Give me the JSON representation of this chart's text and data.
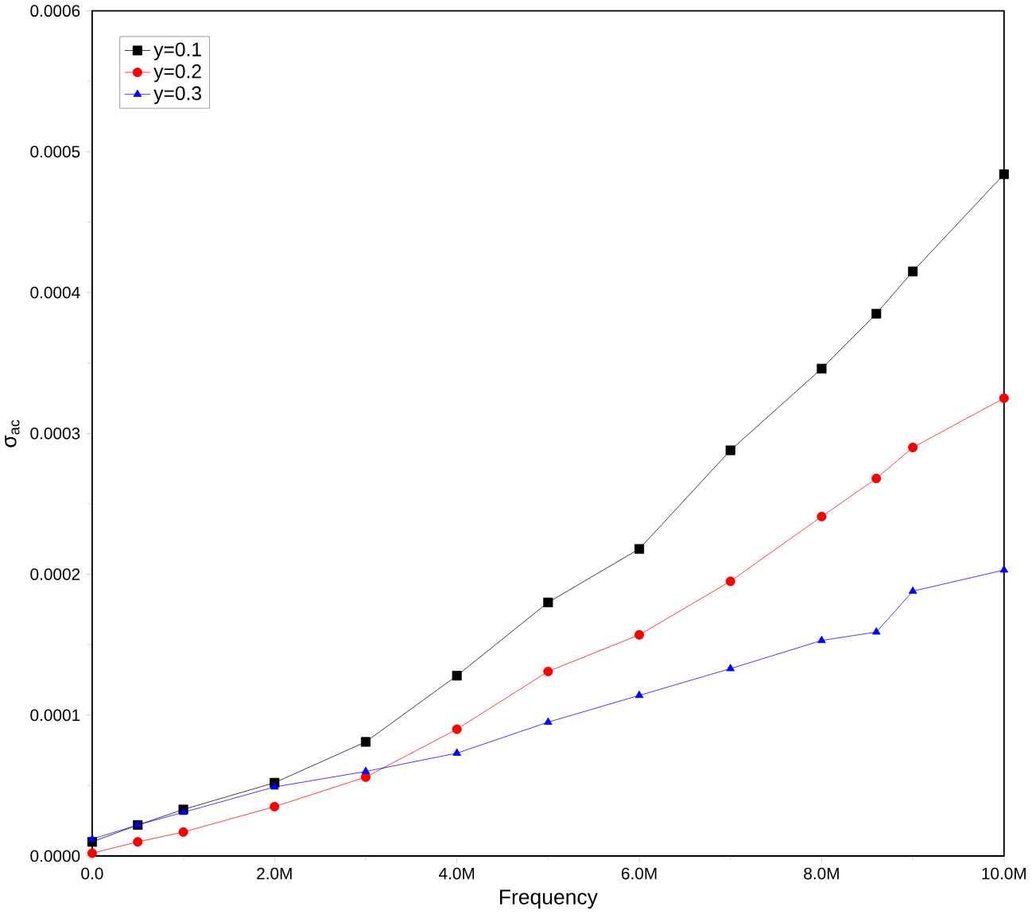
{
  "chart_data": {
    "type": "line",
    "xlabel": "Frequency",
    "ylabel": "σ$_{ac}$",
    "x": [
      0,
      500000,
      1000000,
      2000000,
      3000000,
      4000000,
      5000000,
      6000000,
      7000000,
      8000000,
      8600000,
      9000000,
      10000000
    ],
    "series": [
      {
        "name": "y=0.1",
        "color": "#000000",
        "marker": "square",
        "values": [
          1e-05,
          2.2e-05,
          3.3e-05,
          5.2e-05,
          8.1e-05,
          0.000128,
          0.00018,
          0.000218,
          0.000288,
          0.000346,
          0.000385,
          0.000415,
          0.000484
        ]
      },
      {
        "name": "y=0.2",
        "color": "#ff0000",
        "marker": "circle",
        "values": [
          2e-06,
          1e-05,
          1.7e-05,
          3.5e-05,
          5.6e-05,
          9e-05,
          0.000131,
          0.000157,
          0.000195,
          0.000241,
          0.000268,
          0.00029,
          0.000325
        ]
      },
      {
        "name": "y=0.3",
        "color": "#0000ff",
        "marker": "triangle",
        "values": [
          1.2e-05,
          2.2e-05,
          3.1e-05,
          4.9e-05,
          6e-05,
          7.3e-05,
          9.5e-05,
          0.000114,
          0.000133,
          0.000153,
          0.000159,
          0.000188,
          0.000203
        ]
      }
    ],
    "xlim": [
      0,
      10000000
    ],
    "ylim": [
      0,
      0.0006
    ],
    "xticks": [
      {
        "value": 0,
        "label": "0.0"
      },
      {
        "value": 2000000,
        "label": "2.0M"
      },
      {
        "value": 4000000,
        "label": "4.0M"
      },
      {
        "value": 6000000,
        "label": "6.0M"
      },
      {
        "value": 8000000,
        "label": "8.0M"
      },
      {
        "value": 10000000,
        "label": "10.0M"
      }
    ],
    "yticks": [
      {
        "value": 0,
        "label": "0.0000"
      },
      {
        "value": 0.0001,
        "label": "0.0001"
      },
      {
        "value": 0.0002,
        "label": "0.0002"
      },
      {
        "value": 0.0003,
        "label": "0.0003"
      },
      {
        "value": 0.0004,
        "label": "0.0004"
      },
      {
        "value": 0.0005,
        "label": "0.0005"
      },
      {
        "value": 0.0006,
        "label": "0.0006"
      }
    ],
    "legend": "top left",
    "grid": false
  }
}
